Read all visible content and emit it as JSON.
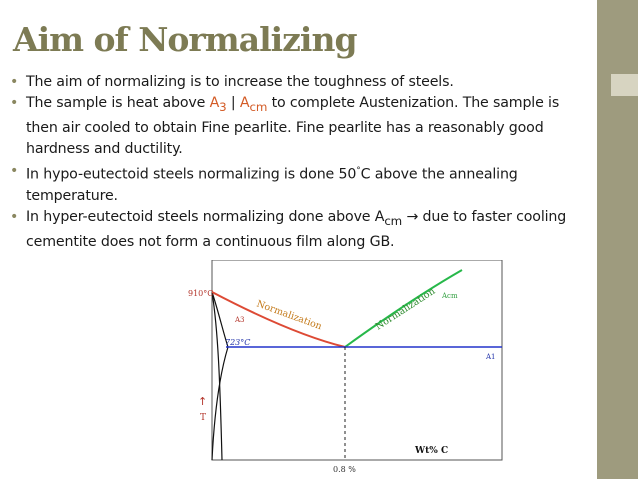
{
  "slide": {
    "title": "Aim of Normalizing",
    "bullets": [
      {
        "text": "The aim of normalizing is to increase the toughness of steels."
      },
      {
        "pre": "The sample is heat above ",
        "a3_base": "A",
        "a3_sub": "3",
        "mid": " | ",
        "acm_base": "A",
        "acm_sub": "cm",
        "post": " to complete Austenization. The sample is then air cooled to obtain Fine pearlite. Fine pearlite has a reasonably good hardness and ductility."
      },
      {
        "pre": "In hypo-eutectoid steels normalizing is done 50",
        "deg": "°",
        "post": "C above the annealing temperature."
      },
      {
        "pre": "In hyper-eutectoid steels normalizing done above A",
        "sub": "cm",
        "post": " → due to faster cooling cementite does not form a continuous film along GB."
      }
    ]
  },
  "diagram": {
    "labels": {
      "t910": "910°C",
      "t723": "723°C",
      "a3": "A3",
      "acm": "Acm",
      "a1": "A1",
      "norm_left": "Normalization",
      "norm_right": "Normalization",
      "arrow": "↑",
      "t_axis": "T",
      "wt": "Wt% C",
      "eutectoid": "0.8 %"
    },
    "colors": {
      "a3_curve": "#dd4a35",
      "acm_curve": "#27b84a",
      "a1_line": "#2233cc",
      "label_red": "#b3342a",
      "label_green": "#2f9e3e",
      "label_blue": "#2233aa",
      "norm_left": "#c47a1a",
      "norm_right": "#2c8a2c"
    }
  }
}
